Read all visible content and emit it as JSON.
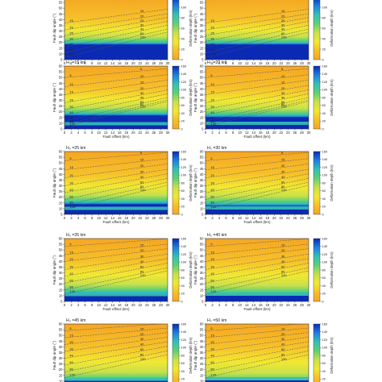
{
  "chart_data": {
    "type": "heatmap",
    "layout": {
      "rows": 5,
      "cols": 2
    },
    "xlabel": "Fault offset (km)",
    "ylabel": "Fault dip angle (°)",
    "colorbar_label": "Deformation depth (km)",
    "x_ticks": [
      "0",
      "2",
      "4",
      "6",
      "8",
      "10",
      "12",
      "14",
      "16",
      "18",
      "20",
      "22",
      "24",
      "26",
      "28",
      "30"
    ],
    "y_ticks": [
      "5",
      "10",
      "15",
      "20",
      "25",
      "30",
      "35",
      "40",
      "45",
      "50",
      "55",
      "60"
    ],
    "xlim": [
      0,
      30
    ],
    "ylim": [
      5,
      60
    ],
    "colormap": [
      "#f5a623",
      "#f6c02a",
      "#f2e832",
      "#c8e04b",
      "#5fd075",
      "#34c0b4",
      "#1f7fe0",
      "#0b2ab4"
    ],
    "panels": [
      {
        "title": "",
        "H": null,
        "cbar_ticks": [
          "0",
          "20",
          "40",
          "60",
          "80",
          "100",
          "120"
        ],
        "cbar_max": 120,
        "contours": [
          {
            "level": "15",
            "y0": 37
          },
          {
            "level": "20",
            "y0": 31
          },
          {
            "level": "25",
            "y0": 26
          },
          {
            "level": "30",
            "y0": 21
          },
          {
            "level": "40",
            "y0": 16
          },
          {
            "level": "60",
            "y0": 11
          },
          {
            "level": "100",
            "y0": 7
          }
        ]
      },
      {
        "title": "",
        "H": null,
        "cbar_ticks": [
          "0",
          "20",
          "40",
          "60",
          "80",
          "100",
          "120"
        ],
        "cbar_max": 120,
        "contours": [
          {
            "level": "15",
            "y0": 37
          },
          {
            "level": "20",
            "y0": 31
          },
          {
            "level": "25",
            "y0": 26
          },
          {
            "level": "30",
            "y0": 21
          },
          {
            "level": "40",
            "y0": 16
          },
          {
            "level": "60",
            "y0": 11
          },
          {
            "level": "100",
            "y0": 7
          }
        ]
      },
      {
        "title": "H₀ =15 km",
        "H": 15,
        "cbar_ticks": [
          "0",
          "20",
          "40",
          "60",
          "80",
          "100",
          "120",
          "140",
          "160"
        ],
        "cbar_max": 160,
        "contours": [
          {
            "level": "5",
            "y0": 50
          },
          {
            "level": "10",
            "y0": 42
          },
          {
            "level": "15",
            "y0": 35
          },
          {
            "level": "20",
            "y0": 28
          },
          {
            "level": "30",
            "y0": 22
          },
          {
            "level": "40",
            "y0": 17
          },
          {
            "level": "60",
            "y0": 12
          },
          {
            "level": "80",
            "y0": 9
          },
          {
            "level": "120",
            "y0": 7
          }
        ]
      },
      {
        "title": "H₀ =20 km",
        "H": 20,
        "cbar_ticks": [
          "0",
          "20",
          "40",
          "60",
          "80",
          "100",
          "120",
          "140",
          "160"
        ],
        "cbar_max": 160,
        "contours": [
          {
            "level": "5",
            "y0": 50
          },
          {
            "level": "10",
            "y0": 42
          },
          {
            "level": "15",
            "y0": 35
          },
          {
            "level": "20",
            "y0": 28
          },
          {
            "level": "30",
            "y0": 22
          },
          {
            "level": "40",
            "y0": 17
          },
          {
            "level": "60",
            "y0": 12
          },
          {
            "level": "80",
            "y0": 9
          },
          {
            "level": "120",
            "y0": 7
          }
        ]
      },
      {
        "title": "H₀ =25 km",
        "H": 25,
        "cbar_ticks": [
          "0",
          "20",
          "40",
          "60",
          "80",
          "100",
          "120",
          "140",
          "160"
        ],
        "cbar_max": 160,
        "contours": [
          {
            "level": "5",
            "y0": 52
          },
          {
            "level": "15",
            "y0": 44
          },
          {
            "level": "20",
            "y0": 37
          },
          {
            "level": "30",
            "y0": 30
          },
          {
            "level": "40",
            "y0": 24
          },
          {
            "level": "60",
            "y0": 18
          },
          {
            "level": "80",
            "y0": 13
          },
          {
            "level": "120",
            "y0": 9
          }
        ]
      },
      {
        "title": "H₀ =30 km",
        "H": 30,
        "cbar_ticks": [
          "0",
          "20",
          "40",
          "60",
          "80",
          "100",
          "120",
          "140",
          "160"
        ],
        "cbar_max": 160,
        "contours": [
          {
            "level": "5",
            "y0": 52
          },
          {
            "level": "15",
            "y0": 44
          },
          {
            "level": "20",
            "y0": 37
          },
          {
            "level": "30",
            "y0": 30
          },
          {
            "level": "40",
            "y0": 24
          },
          {
            "level": "60",
            "y0": 18
          },
          {
            "level": "80",
            "y0": 13
          },
          {
            "level": "120",
            "y0": 9
          }
        ]
      },
      {
        "title": "H₀ =35 km",
        "H": 35,
        "cbar_ticks": [
          "0",
          "20",
          "40",
          "60",
          "80",
          "100",
          "120",
          "140",
          "160"
        ],
        "cbar_max": 160,
        "contours": [
          {
            "level": "5",
            "y0": 53
          },
          {
            "level": "15",
            "y0": 46
          },
          {
            "level": "20",
            "y0": 40
          },
          {
            "level": "30",
            "y0": 33
          },
          {
            "level": "40",
            "y0": 27
          },
          {
            "level": "60",
            "y0": 21
          },
          {
            "level": "80",
            "y0": 15
          },
          {
            "level": "120",
            "y0": 11
          }
        ]
      },
      {
        "title": "H₀ =40 km",
        "H": 40,
        "cbar_ticks": [
          "0",
          "20",
          "40",
          "60",
          "80",
          "100",
          "120",
          "140",
          "160"
        ],
        "cbar_max": 160,
        "contours": [
          {
            "level": "5",
            "y0": 53
          },
          {
            "level": "15",
            "y0": 46
          },
          {
            "level": "20",
            "y0": 40
          },
          {
            "level": "30",
            "y0": 33
          },
          {
            "level": "40",
            "y0": 27
          },
          {
            "level": "60",
            "y0": 21
          },
          {
            "level": "80",
            "y0": 15
          },
          {
            "level": "120",
            "y0": 11
          }
        ]
      },
      {
        "title": "H₀ =45 km",
        "H": 45,
        "cbar_ticks": [
          "0",
          "20",
          "40",
          "60",
          "80",
          "100",
          "120",
          "140",
          "160"
        ],
        "cbar_max": 160,
        "contours": [
          {
            "level": "5",
            "y0": 54
          },
          {
            "level": "15",
            "y0": 48
          },
          {
            "level": "20",
            "y0": 42
          },
          {
            "level": "30",
            "y0": 36
          },
          {
            "level": "40",
            "y0": 30
          },
          {
            "level": "60",
            "y0": 24
          },
          {
            "level": "80",
            "y0": 18
          },
          {
            "level": "120",
            "y0": 13
          }
        ]
      },
      {
        "title": "H₀ =50 km",
        "H": 50,
        "cbar_ticks": [
          "0",
          "20",
          "40",
          "60",
          "80",
          "100",
          "120",
          "140",
          "160"
        ],
        "cbar_max": 160,
        "contours": [
          {
            "level": "5",
            "y0": 54
          },
          {
            "level": "15",
            "y0": 48
          },
          {
            "level": "20",
            "y0": 42
          },
          {
            "level": "30",
            "y0": 36
          },
          {
            "level": "40",
            "y0": 30
          },
          {
            "level": "60",
            "y0": 24
          },
          {
            "level": "80",
            "y0": 18
          },
          {
            "level": "120",
            "y0": 13
          }
        ]
      }
    ]
  }
}
